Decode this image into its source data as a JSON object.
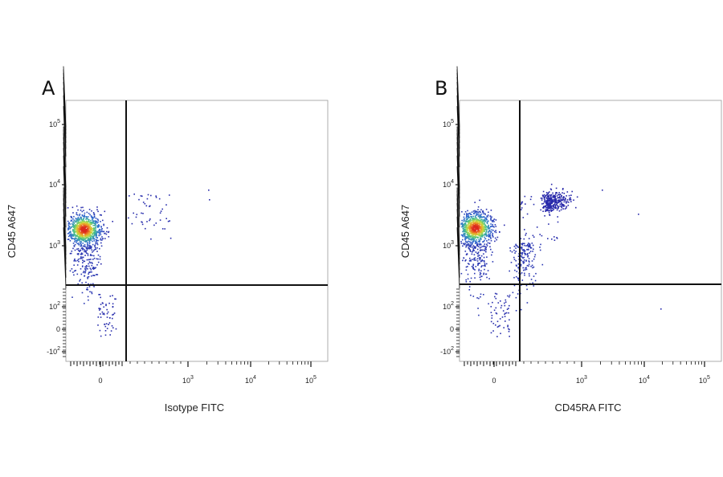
{
  "chart_data": [
    {
      "type": "scatter",
      "panel_label": "A",
      "xlabel": "Isotype FITC",
      "ylabel": "CD45 A647",
      "x_ticks": [
        {
          "base": "0",
          "exp": ""
        },
        {
          "base": "10",
          "exp": "3"
        },
        {
          "base": "10",
          "exp": "4"
        },
        {
          "base": "10",
          "exp": "5"
        }
      ],
      "y_ticks": [
        {
          "base": "10",
          "exp": "5"
        },
        {
          "base": "10",
          "exp": "4"
        },
        {
          "base": "10",
          "exp": "3"
        },
        {
          "base": "10",
          "exp": "2"
        },
        {
          "base": "0",
          "exp": ""
        },
        {
          "base": "-10",
          "exp": "2"
        }
      ],
      "quadrant_gate": {
        "x": 180,
        "y": 230
      },
      "populations": [
        {
          "name": "",
          "center_x": 0,
          "center_y": 3800,
          "density": "high"
        }
      ],
      "grid": false,
      "color_scale": "density (blue-green-yellow-red)"
    },
    {
      "type": "scatter",
      "panel_label": "B",
      "xlabel": "CD45RA FITC",
      "ylabel": "CD45 A647",
      "x_ticks": [
        {
          "base": "0",
          "exp": ""
        },
        {
          "base": "10",
          "exp": "3"
        },
        {
          "base": "10",
          "exp": "4"
        },
        {
          "base": "10",
          "exp": "5"
        }
      ],
      "y_ticks": [
        {
          "base": "10",
          "exp": "5"
        },
        {
          "base": "10",
          "exp": "4"
        },
        {
          "base": "10",
          "exp": "3"
        },
        {
          "base": "10",
          "exp": "2"
        },
        {
          "base": "0",
          "exp": ""
        },
        {
          "base": "-10",
          "exp": "2"
        }
      ],
      "quadrant_gate": {
        "x": 180,
        "y": 230
      },
      "populations": [
        {
          "name": "",
          "center_x": 0,
          "center_y": 4000,
          "density": "high"
        },
        {
          "name": "",
          "center_x": 550,
          "center_y": 4200,
          "density": "medium"
        }
      ],
      "grid": false,
      "color_scale": "density (blue-green-yellow-red)"
    }
  ]
}
